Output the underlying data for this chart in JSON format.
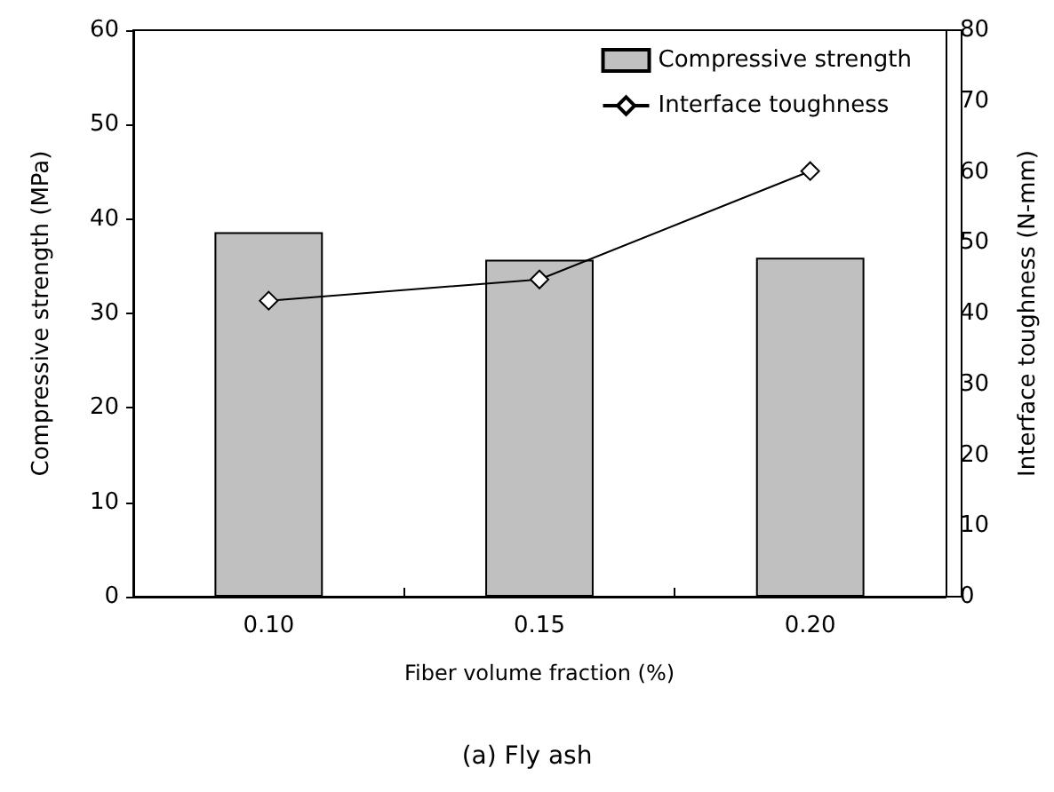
{
  "chart_data": {
    "type": "bar",
    "title": "(a) Fly ash",
    "xlabel": "Fiber volume fraction (%)",
    "ylabel": "Compressive strength (MPa)",
    "y2label": "Interface toughness (N-mm)",
    "categories": [
      "0.10",
      "0.15",
      "0.20"
    ],
    "series": [
      {
        "name": "Compressive strength",
        "color": "#c0c0c0",
        "values": [
          38.6,
          35.7,
          35.9
        ]
      },
      {
        "name": "Interface toughness",
        "type": "line",
        "axis": "y2",
        "color": "#000000",
        "marker": "diamond",
        "values": [
          41.8,
          44.8,
          60.1
        ]
      }
    ],
    "ylim": [
      0,
      60
    ],
    "yticks": [
      0,
      10,
      20,
      30,
      40,
      50,
      60
    ],
    "y2lim": [
      0,
      80
    ],
    "y2ticks": [
      0,
      10,
      20,
      30,
      40,
      50,
      60,
      70,
      80
    ],
    "grid": false,
    "legend": "top right"
  }
}
